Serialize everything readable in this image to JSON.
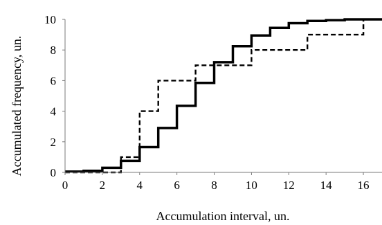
{
  "chart_data": {
    "type": "line",
    "step": true,
    "title": "",
    "xlabel": "Accumulation interval, un.",
    "ylabel": "Accumulated frequency, un.",
    "xlim": [
      0,
      17
    ],
    "ylim": [
      0,
      10
    ],
    "x_ticks": [
      "0",
      "2",
      "4",
      "6",
      "8",
      "10",
      "12",
      "14",
      "16"
    ],
    "y_ticks": [
      "0",
      "2",
      "4",
      "6",
      "8",
      "10"
    ],
    "grid": false,
    "legend": "none",
    "series": [
      {
        "style": "solid",
        "color": "#000000",
        "points": [
          [
            0,
            0.05
          ],
          [
            1,
            0.1
          ],
          [
            2,
            0.3
          ],
          [
            3,
            0.75
          ],
          [
            4,
            1.65
          ],
          [
            5,
            2.9
          ],
          [
            6,
            4.35
          ],
          [
            7,
            5.85
          ],
          [
            8,
            7.2
          ],
          [
            9,
            8.25
          ],
          [
            10,
            8.95
          ],
          [
            11,
            9.45
          ],
          [
            12,
            9.75
          ],
          [
            13,
            9.9
          ],
          [
            14,
            9.95
          ],
          [
            15,
            10
          ],
          [
            17,
            10
          ]
        ]
      },
      {
        "style": "dashed",
        "color": "#000000",
        "points": [
          [
            0,
            0
          ],
          [
            3,
            1
          ],
          [
            4,
            4
          ],
          [
            5,
            6
          ],
          [
            7,
            7
          ],
          [
            10,
            8
          ],
          [
            13,
            9
          ],
          [
            16,
            10
          ],
          [
            17,
            10
          ]
        ]
      }
    ]
  }
}
